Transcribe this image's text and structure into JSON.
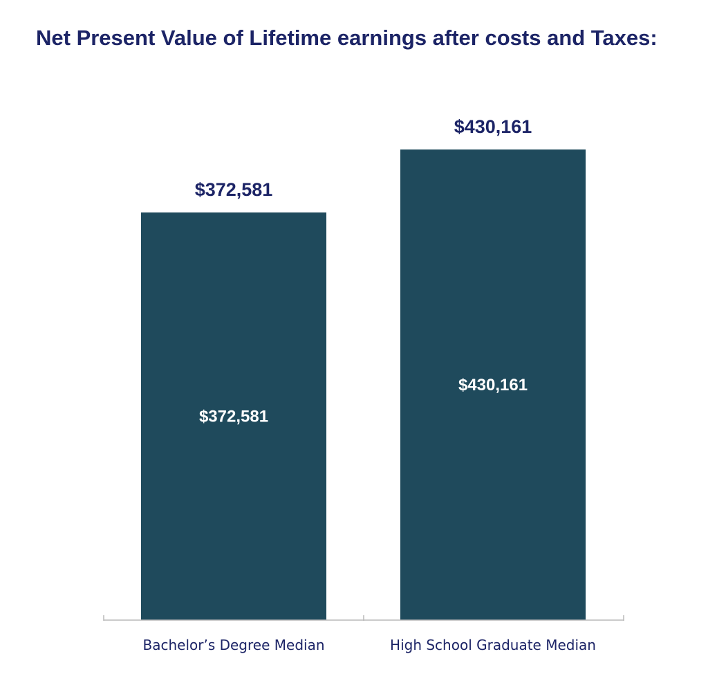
{
  "colors": {
    "bar": "#1f4a5c",
    "title": "#1c2466",
    "value_label": "#1c2466",
    "inner_label": "#ffffff",
    "category_label": "#1c2466",
    "axis": "#b8b8b8"
  },
  "chart_data": {
    "type": "bar",
    "title": "Net Present Value of Lifetime earnings after costs and Taxes:",
    "xlabel": "",
    "ylabel": "",
    "categories": [
      "Bachelor’s Degree Median",
      "High School Graduate Median"
    ],
    "values": [
      372581,
      430161
    ],
    "value_labels": [
      "$372,581",
      "$430,161"
    ],
    "ylim": [
      0,
      430161
    ],
    "grid": false,
    "legend": "none"
  }
}
